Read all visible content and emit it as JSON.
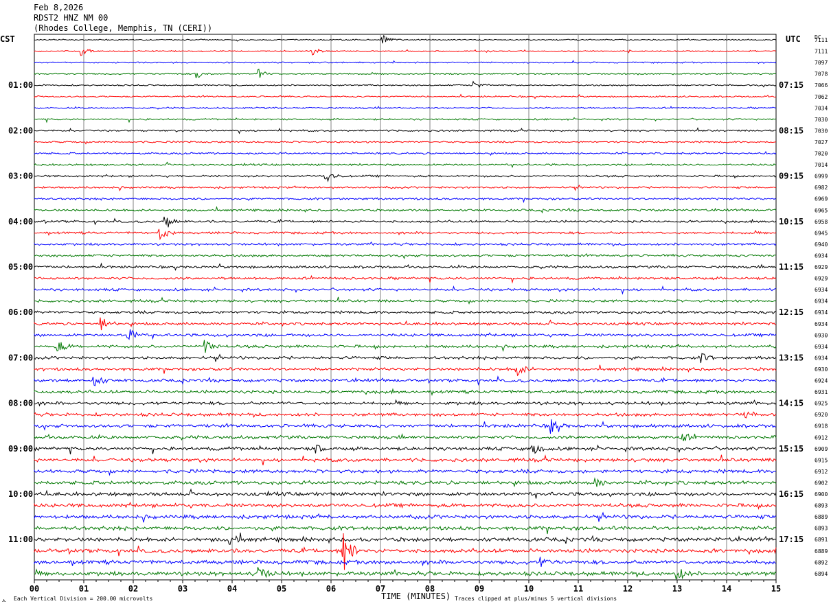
{
  "header": {
    "date": "Feb 8,2026",
    "station": "RDST2 HNZ NM 00",
    "location": "(Rhodes College, Memphis, TN (CERI))"
  },
  "left_timezone": "CST",
  "right_timezone": "UTC",
  "dc_label": "DC",
  "footer": {
    "scale_note": "Each Vertical Division =  200.00 microvolts",
    "clip_note": "Traces clipped at plus/minus 5 vertical divisions",
    "corner_mark": "ㅅ"
  },
  "chart_data": {
    "type": "line",
    "title": "",
    "xlabel": "TIME (MINUTES)",
    "ylabel": "",
    "xlim": [
      0,
      15
    ],
    "x_ticks": [
      "00",
      "01",
      "02",
      "03",
      "04",
      "05",
      "06",
      "07",
      "08",
      "09",
      "10",
      "11",
      "12",
      "13",
      "14",
      "15"
    ],
    "trace_count": 48,
    "trace_colors": [
      "#000000",
      "#ff0000",
      "#0000ff",
      "#007800"
    ],
    "left_hour_labels": [
      "01:00",
      "02:00",
      "03:00",
      "04:00",
      "05:00",
      "06:00",
      "07:00",
      "08:00",
      "09:00",
      "10:00",
      "11:00"
    ],
    "right_hour_labels": [
      "07:15",
      "08:15",
      "09:15",
      "10:15",
      "11:15",
      "12:15",
      "13:15",
      "14:15",
      "15:15",
      "16:15",
      "17:15"
    ],
    "dc_offsets": [
      7111,
      7111,
      7097,
      7078,
      7066,
      7062,
      7034,
      7030,
      7030,
      7027,
      7020,
      7014,
      6999,
      6982,
      6969,
      6965,
      6958,
      6945,
      6940,
      6934,
      6929,
      6929,
      6934,
      6934,
      6934,
      6934,
      6930,
      6934,
      6934,
      6930,
      6924,
      6931,
      6925,
      6920,
      6918,
      6912,
      6909,
      6915,
      6912,
      6902,
      6900,
      6893,
      6889,
      6893,
      6891,
      6889,
      6892,
      6894
    ],
    "events": [
      {
        "trace": 0,
        "minute": 7.05,
        "amplitude": "small"
      },
      {
        "trace": 1,
        "minute": 0.95,
        "amplitude": "small"
      },
      {
        "trace": 1,
        "minute": 5.6,
        "amplitude": "small"
      },
      {
        "trace": 3,
        "minute": 3.3,
        "amplitude": "small"
      },
      {
        "trace": 3,
        "minute": 4.55,
        "amplitude": "small"
      },
      {
        "trace": 4,
        "minute": 8.9,
        "amplitude": "small"
      },
      {
        "trace": 12,
        "minute": 5.9,
        "amplitude": "medium"
      },
      {
        "trace": 16,
        "minute": 2.65,
        "amplitude": "medium"
      },
      {
        "trace": 17,
        "minute": 2.55,
        "amplitude": "medium"
      },
      {
        "trace": 25,
        "minute": 1.35,
        "amplitude": "medium"
      },
      {
        "trace": 26,
        "minute": 1.9,
        "amplitude": "medium"
      },
      {
        "trace": 27,
        "minute": 3.45,
        "amplitude": "medium"
      },
      {
        "trace": 27,
        "minute": 0.45,
        "amplitude": "medium"
      },
      {
        "trace": 28,
        "minute": 13.5,
        "amplitude": "small"
      },
      {
        "trace": 29,
        "minute": 9.75,
        "amplitude": "medium"
      },
      {
        "trace": 30,
        "minute": 1.2,
        "amplitude": "medium"
      },
      {
        "trace": 33,
        "minute": 14.35,
        "amplitude": "small"
      },
      {
        "trace": 34,
        "minute": 10.45,
        "amplitude": "medium"
      },
      {
        "trace": 35,
        "minute": 13.1,
        "amplitude": "small"
      },
      {
        "trace": 36,
        "minute": 10.05,
        "amplitude": "medium"
      },
      {
        "trace": 36,
        "minute": 5.7,
        "amplitude": "small"
      },
      {
        "trace": 39,
        "minute": 11.35,
        "amplitude": "small"
      },
      {
        "trace": 44,
        "minute": 3.95,
        "amplitude": "medium"
      },
      {
        "trace": 45,
        "minute": 6.25,
        "amplitude": "large"
      },
      {
        "trace": 46,
        "minute": 10.25,
        "amplitude": "small"
      },
      {
        "trace": 47,
        "minute": 4.55,
        "amplitude": "medium"
      },
      {
        "trace": 47,
        "minute": 13.0,
        "amplitude": "medium"
      }
    ]
  }
}
